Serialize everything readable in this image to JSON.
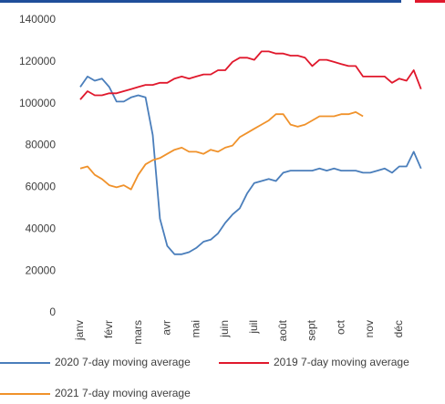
{
  "chart_data": {
    "type": "line",
    "categories": [
      "janv",
      null,
      null,
      null,
      "févr",
      null,
      null,
      null,
      "mars",
      null,
      null,
      null,
      "avr",
      null,
      null,
      null,
      "mai",
      null,
      null,
      null,
      "juin",
      null,
      null,
      null,
      "juil",
      null,
      null,
      null,
      "août",
      null,
      null,
      null,
      "sept",
      null,
      null,
      null,
      "oct",
      null,
      null,
      null,
      "nov",
      null,
      null,
      null,
      "déc",
      null,
      null,
      null
    ],
    "series": [
      {
        "name": "2020 7-day moving average",
        "color": "#4a7ebb",
        "values": [
          108000,
          113000,
          111000,
          112000,
          108000,
          101000,
          101000,
          103000,
          104000,
          103000,
          85000,
          45000,
          32000,
          28000,
          28000,
          29000,
          31000,
          34000,
          35000,
          38000,
          43000,
          47000,
          50000,
          57000,
          62000,
          63000,
          64000,
          63000,
          67000,
          68000,
          68000,
          68000,
          68000,
          69000,
          68000,
          69000,
          68000,
          68000,
          68000,
          67000,
          67000,
          68000,
          69000,
          67000,
          70000,
          70000,
          77000,
          69000
        ]
      },
      {
        "name": "2019 7-day moving average",
        "color": "#e0182c",
        "values": [
          102000,
          106000,
          104000,
          104000,
          105000,
          105000,
          106000,
          107000,
          108000,
          109000,
          109000,
          110000,
          110000,
          112000,
          113000,
          112000,
          113000,
          114000,
          114000,
          116000,
          116000,
          120000,
          122000,
          122000,
          121000,
          125000,
          125000,
          124000,
          124000,
          123000,
          123000,
          122000,
          118000,
          121000,
          121000,
          120000,
          119000,
          118000,
          118000,
          113000,
          113000,
          113000,
          113000,
          110000,
          112000,
          111000,
          116000,
          107000
        ]
      },
      {
        "name": "2021 7-day moving average",
        "color": "#f0922b",
        "values": [
          69000,
          70000,
          66000,
          64000,
          61000,
          60000,
          61000,
          59000,
          66000,
          71000,
          73000,
          74000,
          76000,
          78000,
          79000,
          77000,
          77000,
          76000,
          78000,
          77000,
          79000,
          80000,
          84000,
          86000,
          88000,
          90000,
          92000,
          95000,
          95000,
          90000,
          89000,
          90000,
          92000,
          94000,
          94000,
          94000,
          95000,
          95000,
          96000,
          94000,
          null,
          null,
          null,
          null,
          null,
          null,
          null,
          null
        ]
      }
    ],
    "ylim": [
      0,
      140000
    ],
    "yticks": [
      0,
      20000,
      40000,
      60000,
      80000,
      100000,
      120000,
      140000
    ],
    "grid": false,
    "legend": "bottom"
  }
}
